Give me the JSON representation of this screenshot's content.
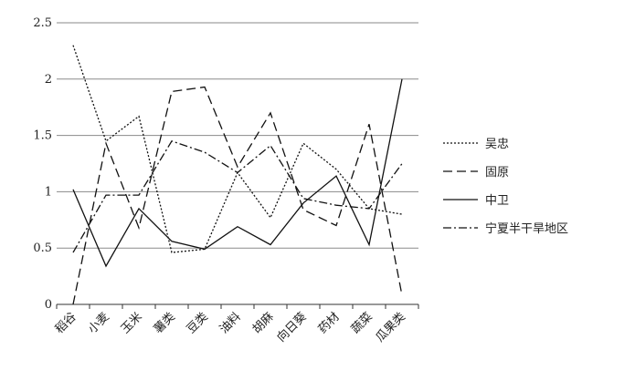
{
  "chart_data": {
    "type": "line",
    "title": "",
    "xlabel": "",
    "ylabel": "",
    "categories": [
      "稻谷",
      "小麦",
      "玉米",
      "薯类",
      "豆类",
      "油料",
      "胡麻",
      "向日葵",
      "药材",
      "蔬菜",
      "瓜果类"
    ],
    "ylim": [
      0,
      2.5
    ],
    "yticks": [
      "0",
      "0.5",
      "1",
      "1.5",
      "2",
      "2.5"
    ],
    "grid": true,
    "legend_position": "right",
    "series": [
      {
        "name": "吴忠",
        "dash": "dotted",
        "values": [
          2.3,
          1.45,
          1.67,
          0.46,
          0.49,
          1.17,
          0.77,
          1.43,
          1.2,
          0.85,
          0.8
        ]
      },
      {
        "name": "固原",
        "dash": "dashed",
        "values": [
          0.0,
          1.43,
          0.68,
          1.89,
          1.93,
          1.22,
          1.7,
          0.84,
          0.7,
          1.6,
          0.08
        ]
      },
      {
        "name": "中卫",
        "dash": "solid",
        "values": [
          1.02,
          0.34,
          0.85,
          0.56,
          0.49,
          0.69,
          0.53,
          0.9,
          1.14,
          0.53,
          2.0
        ]
      },
      {
        "name": "宁夏半干旱地区",
        "dash": "dashdot",
        "values": [
          0.46,
          0.97,
          0.97,
          1.45,
          1.35,
          1.17,
          1.41,
          0.94,
          0.88,
          0.85,
          1.25
        ]
      }
    ]
  }
}
